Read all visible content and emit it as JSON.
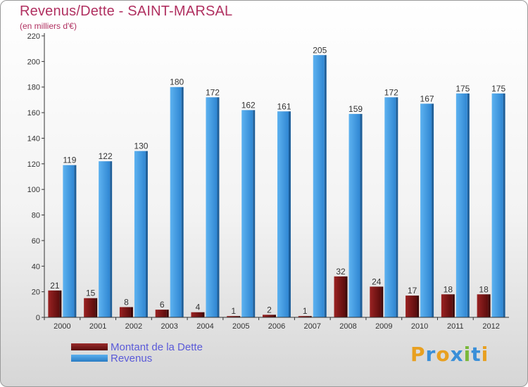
{
  "chart_data": {
    "type": "bar",
    "title": "Revenus/Dette - SAINT-MARSAL",
    "subtitle": "(en milliers d'€)",
    "categories": [
      "2000",
      "2001",
      "2002",
      "2003",
      "2004",
      "2005",
      "2006",
      "2007",
      "2008",
      "2009",
      "2010",
      "2011",
      "2012"
    ],
    "series": [
      {
        "name": "Montant de la Dette",
        "color": "#7a1515",
        "values": [
          21,
          15,
          8,
          6,
          4,
          1,
          2,
          1,
          32,
          24,
          17,
          18,
          18
        ]
      },
      {
        "name": "Revenus",
        "color": "#3d97de",
        "values": [
          119,
          122,
          130,
          180,
          172,
          162,
          161,
          205,
          159,
          172,
          167,
          175,
          175
        ]
      }
    ],
    "ylim": [
      0,
      220
    ],
    "yticks": [
      0,
      20,
      40,
      60,
      80,
      100,
      120,
      140,
      160,
      180,
      200,
      220
    ],
    "grid": false,
    "legend": "bottom-left"
  },
  "logo": {
    "text": "Proxiti",
    "letters": [
      {
        "ch": "P",
        "color": "#e8a020"
      },
      {
        "ch": "r",
        "color": "#3a8fd8"
      },
      {
        "ch": "o",
        "color": "#e8a020"
      },
      {
        "ch": "x",
        "color": "#3a8fd8"
      },
      {
        "ch": "i",
        "color": "#7ab83a"
      },
      {
        "ch": "t",
        "color": "#3a8fd8"
      },
      {
        "ch": "i",
        "color": "#e8a020"
      }
    ]
  }
}
